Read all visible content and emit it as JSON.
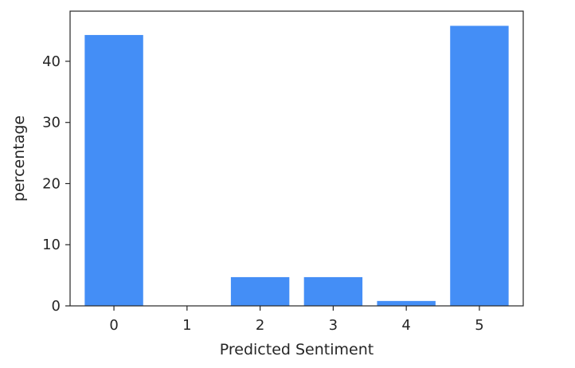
{
  "chart_data": {
    "type": "bar",
    "categories": [
      "0",
      "1",
      "2",
      "3",
      "4",
      "5"
    ],
    "values": [
      44.3,
      0,
      4.7,
      4.7,
      0.8,
      45.8
    ],
    "xlabel": "Predicted Sentiment",
    "ylabel": "percentage",
    "ylim": [
      0,
      48.2
    ],
    "yticks": [
      0,
      10,
      20,
      30,
      40
    ],
    "grid": false,
    "legend": "none",
    "bar_color": "#448ef6",
    "axis_color": "#262626"
  }
}
